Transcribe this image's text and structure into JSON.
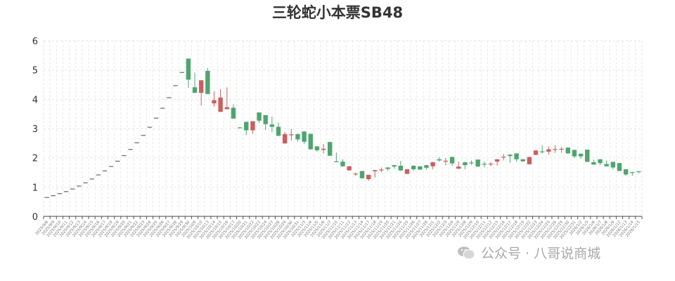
{
  "chart_data": {
    "type": "candlestick",
    "title": "三轮蛇小本票SB48",
    "xlabel": "",
    "ylabel": "",
    "ylim": [
      0,
      6
    ],
    "yticks": [
      0,
      1,
      2,
      3,
      4,
      5,
      6
    ],
    "grid": true,
    "legend": "none",
    "colors": {
      "up": "#c95f5f",
      "down": "#4fa46f",
      "flat": "#666666"
    },
    "dates": [
      "2025/9/8",
      "2025/9/9",
      "2025/9/10",
      "2025/9/11",
      "2025/9/12",
      "2025/9/13",
      "2025/9/14",
      "2025/9/15",
      "2025/9/16",
      "2025/9/17",
      "2025/9/18",
      "2025/9/19",
      "2025/9/20",
      "2025/9/21",
      "2025/9/22",
      "2025/9/23",
      "2025/9/24",
      "2025/9/25",
      "2025/9/26",
      "2025/9/27",
      "2025/9/28",
      "2025/9/29",
      "2025/9/30",
      "2025/10/9",
      "2025/10/10",
      "2025/10/13",
      "2025/10/14",
      "2025/10/15",
      "2025/10/16",
      "2025/10/17",
      "2025/10/20",
      "2025/10/21",
      "2025/10/22",
      "2025/10/23",
      "2025/10/24",
      "2025/10/27",
      "2025/10/28",
      "2025/10/29",
      "2025/10/30",
      "2025/10/31",
      "2025/11/3",
      "2025/11/4",
      "2025/11/5",
      "2025/11/6",
      "2025/11/7",
      "2025/11/10",
      "2025/11/11",
      "2025/11/12",
      "2025/11/13",
      "2025/11/14",
      "2025/11/17",
      "2025/11/18",
      "2025/11/19",
      "2025/11/20",
      "2025/11/21",
      "2025/11/24",
      "2025/11/25",
      "2025/11/26",
      "2025/11/27",
      "2025/11/28",
      "2025/12/1",
      "2025/12/2",
      "2025/12/3",
      "2025/12/4",
      "2025/12/5",
      "2025/12/8",
      "2025/12/9",
      "2025/12/10",
      "2025/12/11",
      "2025/12/12",
      "2025/12/15",
      "2025/12/16",
      "2025/12/17",
      "2025/12/18",
      "2025/12/19",
      "2025/12/22",
      "2025/12/23",
      "2025/12/24",
      "2025/12/25",
      "2025/12/26",
      "2025/12/29",
      "2025/12/30",
      "2025/12/31",
      "2026/1/2",
      "2026/1/5",
      "2026/1/6",
      "2026/1/7",
      "2026/1/8",
      "2026/1/9",
      "2026/1/12",
      "2026/1/13",
      "2026/1/14",
      "2026/1/15"
    ],
    "ohlc_order": [
      "open",
      "close",
      "low",
      "high"
    ],
    "values": [
      [
        0.66,
        0.66,
        0.66,
        0.66
      ],
      [
        0.72,
        0.72,
        0.72,
        0.72
      ],
      [
        0.79,
        0.79,
        0.79,
        0.79
      ],
      [
        0.86,
        0.86,
        0.86,
        0.86
      ],
      [
        0.95,
        0.95,
        0.95,
        0.95
      ],
      [
        1.05,
        1.05,
        1.05,
        1.05
      ],
      [
        1.16,
        1.16,
        1.16,
        1.16
      ],
      [
        1.29,
        1.29,
        1.29,
        1.29
      ],
      [
        1.43,
        1.43,
        1.43,
        1.43
      ],
      [
        1.57,
        1.57,
        1.57,
        1.57
      ],
      [
        1.72,
        1.72,
        1.72,
        1.72
      ],
      [
        1.9,
        1.9,
        1.9,
        1.9
      ],
      [
        2.09,
        2.09,
        2.09,
        2.09
      ],
      [
        2.3,
        2.3,
        2.3,
        2.3
      ],
      [
        2.53,
        2.53,
        2.53,
        2.53
      ],
      [
        2.78,
        2.78,
        2.78,
        2.78
      ],
      [
        3.06,
        3.06,
        3.06,
        3.06
      ],
      [
        3.37,
        3.37,
        3.37,
        3.37
      ],
      [
        3.71,
        3.71,
        3.71,
        3.71
      ],
      [
        4.07,
        4.07,
        4.07,
        4.07
      ],
      [
        4.48,
        4.48,
        4.48,
        4.48
      ],
      [
        4.93,
        4.93,
        4.93,
        4.93
      ],
      [
        5.39,
        4.67,
        4.39,
        5.39
      ],
      [
        4.41,
        4.22,
        4.22,
        4.91
      ],
      [
        4.22,
        4.65,
        3.79,
        4.65
      ],
      [
        4.97,
        4.18,
        4.18,
        5.07
      ],
      [
        3.86,
        3.97,
        3.75,
        4.27
      ],
      [
        3.57,
        4.06,
        3.57,
        4.35
      ],
      [
        3.66,
        3.73,
        3.66,
        4.41
      ],
      [
        3.71,
        3.34,
        3.34,
        3.83
      ],
      [
        3.04,
        3.02,
        3.01,
        3.05
      ],
      [
        3.23,
        2.94,
        2.78,
        3.23
      ],
      [
        2.94,
        3.25,
        2.82,
        3.25
      ],
      [
        3.55,
        3.27,
        3.19,
        3.55
      ],
      [
        3.46,
        3.15,
        2.95,
        3.46
      ],
      [
        3.14,
        3.06,
        2.87,
        3.41
      ],
      [
        3.06,
        2.75,
        2.75,
        3.21
      ],
      [
        2.49,
        2.81,
        2.49,
        2.89
      ],
      [
        2.78,
        2.8,
        2.59,
        2.99
      ],
      [
        2.81,
        2.63,
        2.55,
        2.83
      ],
      [
        2.9,
        2.55,
        2.47,
        2.9
      ],
      [
        2.82,
        2.29,
        2.29,
        2.82
      ],
      [
        2.39,
        2.26,
        2.21,
        2.4
      ],
      [
        2.27,
        2.31,
        2.15,
        2.47
      ],
      [
        2.54,
        2.07,
        2.07,
        2.55
      ],
      [
        1.88,
        1.87,
        1.87,
        2.18
      ],
      [
        1.87,
        1.71,
        1.7,
        1.95
      ],
      [
        1.57,
        1.71,
        1.57,
        1.73
      ],
      [
        1.44,
        1.46,
        1.38,
        1.5
      ],
      [
        1.55,
        1.3,
        1.3,
        1.55
      ],
      [
        1.27,
        1.42,
        1.21,
        1.42
      ],
      [
        1.54,
        1.58,
        1.33,
        1.59
      ],
      [
        1.58,
        1.6,
        1.51,
        1.67
      ],
      [
        1.67,
        1.62,
        1.56,
        1.68
      ],
      [
        1.75,
        1.7,
        1.63,
        1.76
      ],
      [
        1.73,
        1.57,
        1.55,
        1.89
      ],
      [
        1.45,
        1.61,
        1.45,
        1.62
      ],
      [
        1.73,
        1.61,
        1.56,
        1.74
      ],
      [
        1.71,
        1.6,
        1.58,
        1.72
      ],
      [
        1.75,
        1.66,
        1.6,
        1.76
      ],
      [
        1.71,
        1.85,
        1.61,
        1.86
      ],
      [
        1.95,
        1.91,
        1.87,
        2.03
      ],
      [
        1.87,
        1.9,
        1.75,
        2.0
      ],
      [
        2.03,
        1.81,
        1.73,
        2.04
      ],
      [
        1.63,
        1.7,
        1.62,
        1.87
      ],
      [
        1.85,
        1.75,
        1.61,
        1.86
      ],
      [
        1.84,
        1.82,
        1.76,
        1.91
      ],
      [
        1.94,
        1.7,
        1.7,
        1.95
      ],
      [
        1.8,
        1.78,
        1.67,
        1.87
      ],
      [
        1.78,
        1.8,
        1.72,
        1.85
      ],
      [
        1.87,
        1.95,
        1.73,
        1.96
      ],
      [
        2.02,
        2.04,
        1.91,
        2.13
      ],
      [
        2.11,
        2.06,
        1.83,
        2.12
      ],
      [
        2.15,
        1.95,
        1.87,
        2.16
      ],
      [
        1.95,
        1.88,
        1.86,
        1.96
      ],
      [
        1.78,
        2.03,
        1.78,
        2.03
      ],
      [
        2.1,
        2.25,
        2.09,
        2.26
      ],
      [
        2.22,
        2.2,
        2.15,
        2.43
      ],
      [
        2.21,
        2.29,
        2.11,
        2.39
      ],
      [
        2.28,
        2.3,
        2.17,
        2.43
      ],
      [
        2.29,
        2.31,
        2.17,
        2.37
      ],
      [
        2.35,
        2.15,
        2.14,
        2.36
      ],
      [
        2.27,
        2.05,
        1.99,
        2.28
      ],
      [
        2.14,
        2.05,
        1.97,
        2.15
      ],
      [
        2.28,
        1.86,
        1.86,
        2.28
      ],
      [
        1.85,
        1.77,
        1.76,
        1.94
      ],
      [
        1.95,
        1.82,
        1.75,
        1.96
      ],
      [
        1.79,
        1.71,
        1.71,
        1.91
      ],
      [
        1.86,
        1.67,
        1.61,
        1.87
      ],
      [
        1.82,
        1.55,
        1.55,
        1.82
      ],
      [
        1.61,
        1.43,
        1.38,
        1.62
      ],
      [
        1.51,
        1.49,
        1.39,
        1.52
      ],
      [
        1.54,
        1.52,
        1.47,
        1.55
      ]
    ]
  },
  "watermark": {
    "text": "公众号 · 八哥说商城",
    "icon": "wechat-icon"
  }
}
